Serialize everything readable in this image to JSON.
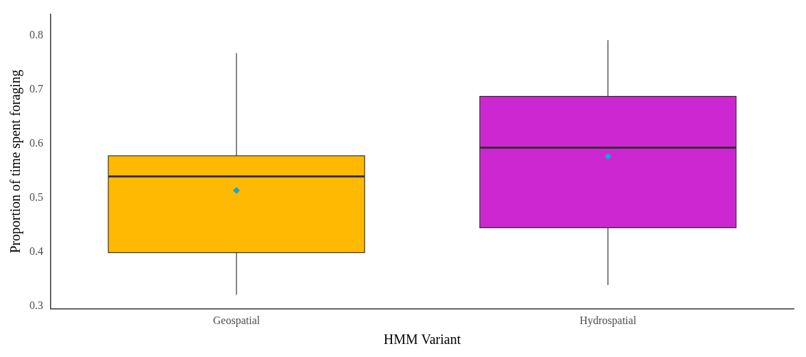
{
  "chart_data": {
    "type": "box",
    "xlabel": "HMM Variant",
    "ylabel": "Proportion of time spent foraging",
    "categories": [
      "Geospatial",
      "Hydrospatial"
    ],
    "colors": [
      "#ffb900",
      "#cc27d0"
    ],
    "boxes": [
      {
        "low": 0.321,
        "q1": 0.399,
        "median": 0.54,
        "q3": 0.578,
        "high": 0.768,
        "mean": 0.514
      },
      {
        "low": 0.339,
        "q1": 0.445,
        "median": 0.593,
        "q3": 0.688,
        "high": 0.792,
        "mean": 0.577
      }
    ],
    "ylim": [
      0.295,
      0.84
    ],
    "yticks": [
      0.3,
      0.4,
      0.5,
      0.6,
      0.7,
      0.8
    ],
    "grid": false,
    "legend": false,
    "marker": "diamond"
  }
}
